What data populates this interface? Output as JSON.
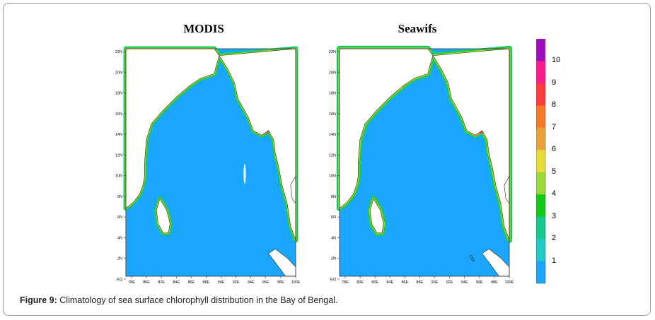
{
  "figure": {
    "panels": [
      {
        "id": "modis",
        "title": "MODIS"
      },
      {
        "id": "seawifs",
        "title": "Seawifs"
      }
    ],
    "lat_labels": [
      "22N",
      "20N",
      "18N",
      "16N",
      "14N",
      "12N",
      "10N",
      "8N",
      "6N",
      "4N",
      "2N",
      "EQ"
    ],
    "lon_labels": [
      "78E",
      "80E",
      "82E",
      "84E",
      "86E",
      "88E",
      "90E",
      "92E",
      "94E",
      "96E",
      "98E",
      "100E"
    ],
    "colorbar": {
      "labels": [
        "10",
        "9",
        "8",
        "7",
        "6",
        "5",
        "4",
        "3",
        "2",
        "1"
      ],
      "colors": [
        "#9b0fbf",
        "#ff1a8c",
        "#ff3b3b",
        "#f47a2a",
        "#e8a23a",
        "#e8dc3a",
        "#9bd83a",
        "#14c814",
        "#14c88c",
        "#23c8c8",
        "#1aa6ff"
      ]
    },
    "colors": {
      "ocean": "#1aa6ff",
      "land": "#ffffff"
    }
  },
  "caption": {
    "label": "Figure 9:",
    "text": " Climatology of sea surface chlorophyll distribution in the Bay of Bengal."
  }
}
